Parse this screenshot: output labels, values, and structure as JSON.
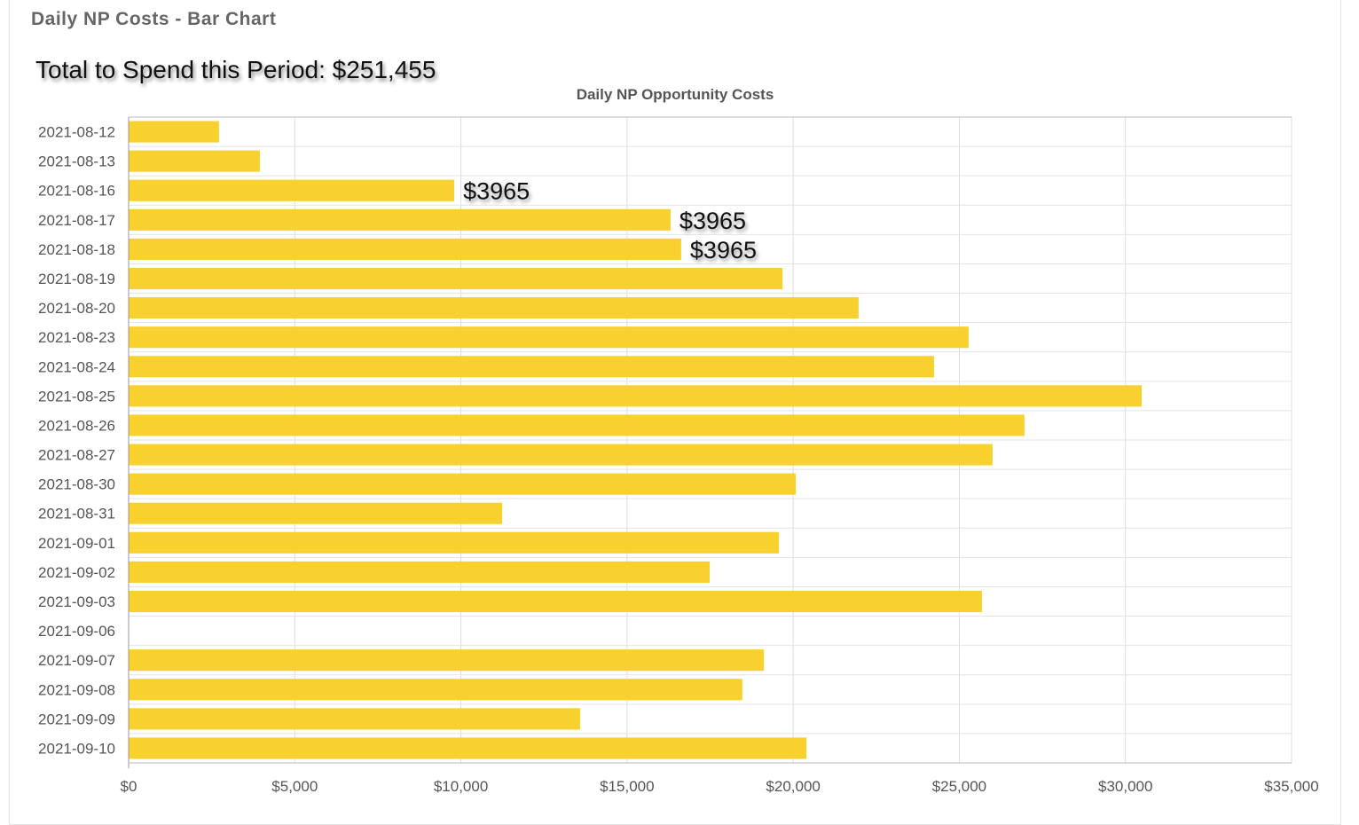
{
  "panel_title": "Daily NP Costs - Bar Chart",
  "total_text": "Total to Spend this Period: $251,455",
  "chart_data": {
    "type": "bar",
    "orientation": "horizontal",
    "title": "Daily NP Opportunity Costs",
    "xlabel": "",
    "ylabel": "",
    "xlim": [
      0,
      35000
    ],
    "x_ticks": [
      "$0",
      "$5,000",
      "$10,000",
      "$15,000",
      "$20,000",
      "$25,000",
      "$30,000",
      "$35,000"
    ],
    "grid": true,
    "bar_color": "#f9d12e",
    "categories": [
      "2021-08-12",
      "2021-08-13",
      "2021-08-16",
      "2021-08-17",
      "2021-08-18",
      "2021-08-19",
      "2021-08-20",
      "2021-08-23",
      "2021-08-24",
      "2021-08-25",
      "2021-08-26",
      "2021-08-27",
      "2021-08-30",
      "2021-08-31",
      "2021-09-01",
      "2021-09-02",
      "2021-09-03",
      "2021-09-06",
      "2021-09-07",
      "2021-09-08",
      "2021-09-09",
      "2021-09-10"
    ],
    "values": [
      2720,
      3950,
      9800,
      16310,
      16630,
      19680,
      21970,
      25280,
      24240,
      30490,
      26960,
      26000,
      20080,
      11240,
      19570,
      17490,
      25680,
      0,
      19120,
      18470,
      13590,
      20400
    ],
    "annotations": [
      {
        "category": "2021-08-16",
        "text": "$3965"
      },
      {
        "category": "2021-08-17",
        "text": "$3965"
      },
      {
        "category": "2021-08-18",
        "text": "$3965"
      }
    ]
  }
}
